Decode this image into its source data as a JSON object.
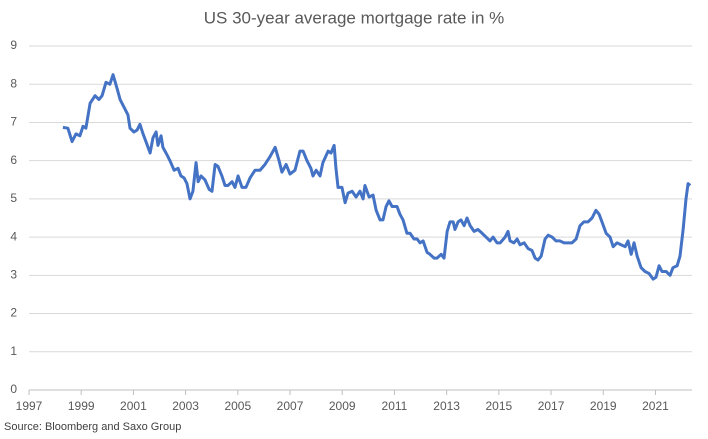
{
  "chart_data": {
    "type": "line",
    "title": "US 30-year average mortgage rate in %",
    "source": "Source: Bloomberg and Saxo Group",
    "x": [
      1998.3,
      1998.49,
      1998.65,
      1998.8,
      1998.95,
      1999.07,
      1999.18,
      1999.34,
      1999.53,
      1999.68,
      1999.8,
      1999.95,
      2000.1,
      2000.22,
      2000.37,
      2000.49,
      2000.64,
      2000.79,
      2000.87,
      2001.02,
      2001.14,
      2001.25,
      2001.37,
      2001.48,
      2001.64,
      2001.75,
      2001.87,
      2001.94,
      2002.06,
      2002.13,
      2002.29,
      2002.4,
      2002.56,
      2002.71,
      2002.82,
      2002.94,
      2003.05,
      2003.17,
      2003.28,
      2003.4,
      2003.48,
      2003.59,
      2003.74,
      2003.9,
      2004.01,
      2004.13,
      2004.24,
      2004.39,
      2004.51,
      2004.62,
      2004.78,
      2004.89,
      2005.01,
      2005.16,
      2005.31,
      2005.47,
      2005.66,
      2005.85,
      2006.04,
      2006.23,
      2006.43,
      2006.58,
      2006.69,
      2006.85,
      2007.0,
      2007.19,
      2007.38,
      2007.5,
      2007.65,
      2007.8,
      2007.88,
      2008.0,
      2008.15,
      2008.26,
      2008.46,
      2008.57,
      2008.69,
      2008.76,
      2008.84,
      2008.99,
      2009.11,
      2009.22,
      2009.38,
      2009.53,
      2009.68,
      2009.8,
      2009.87,
      2010.03,
      2010.18,
      2010.3,
      2010.45,
      2010.56,
      2010.68,
      2010.79,
      2010.91,
      2011.1,
      2011.21,
      2011.33,
      2011.48,
      2011.6,
      2011.75,
      2011.87,
      2011.98,
      2012.1,
      2012.25,
      2012.36,
      2012.52,
      2012.63,
      2012.79,
      2012.9,
      2013.02,
      2013.13,
      2013.25,
      2013.32,
      2013.44,
      2013.55,
      2013.67,
      2013.78,
      2013.9,
      2014.05,
      2014.2,
      2014.36,
      2014.51,
      2014.66,
      2014.78,
      2014.93,
      2015.05,
      2015.24,
      2015.35,
      2015.43,
      2015.58,
      2015.7,
      2015.81,
      2015.97,
      2016.12,
      2016.27,
      2016.39,
      2016.5,
      2016.62,
      2016.77,
      2016.89,
      2017.04,
      2017.19,
      2017.34,
      2017.5,
      2017.65,
      2017.8,
      2017.96,
      2018.11,
      2018.26,
      2018.42,
      2018.57,
      2018.72,
      2018.84,
      2018.95,
      2019.11,
      2019.26,
      2019.38,
      2019.53,
      2019.68,
      2019.84,
      2019.95,
      2020.07,
      2020.18,
      2020.3,
      2020.45,
      2020.6,
      2020.75,
      2020.91,
      2021.02,
      2021.14,
      2021.25,
      2021.41,
      2021.56,
      2021.67,
      2021.83,
      2021.94,
      2022.06,
      2022.17,
      2022.25,
      2022.33
    ],
    "values": [
      6.87,
      6.85,
      6.5,
      6.7,
      6.65,
      6.9,
      6.85,
      7.5,
      7.7,
      7.6,
      7.7,
      8.05,
      8.0,
      8.25,
      7.9,
      7.6,
      7.4,
      7.2,
      6.85,
      6.75,
      6.8,
      6.95,
      6.7,
      6.5,
      6.2,
      6.6,
      6.75,
      6.4,
      6.65,
      6.35,
      6.15,
      6.0,
      5.75,
      5.8,
      5.6,
      5.55,
      5.4,
      5.0,
      5.2,
      5.95,
      5.45,
      5.6,
      5.5,
      5.25,
      5.2,
      5.9,
      5.85,
      5.6,
      5.35,
      5.35,
      5.45,
      5.3,
      5.6,
      5.3,
      5.3,
      5.55,
      5.75,
      5.75,
      5.9,
      6.1,
      6.35,
      6.0,
      5.7,
      5.9,
      5.65,
      5.75,
      6.25,
      6.25,
      6.0,
      5.8,
      5.6,
      5.75,
      5.6,
      5.95,
      6.25,
      6.2,
      6.4,
      5.8,
      5.3,
      5.3,
      4.9,
      5.15,
      5.2,
      5.05,
      5.2,
      5.0,
      5.35,
      5.05,
      5.1,
      4.7,
      4.45,
      4.45,
      4.8,
      4.95,
      4.8,
      4.8,
      4.6,
      4.45,
      4.1,
      4.1,
      3.95,
      3.95,
      3.85,
      3.9,
      3.6,
      3.55,
      3.45,
      3.45,
      3.55,
      3.45,
      4.15,
      4.4,
      4.4,
      4.2,
      4.4,
      4.45,
      4.3,
      4.5,
      4.3,
      4.15,
      4.2,
      4.1,
      4.0,
      3.9,
      4.0,
      3.85,
      3.85,
      4.0,
      4.15,
      3.9,
      3.85,
      3.95,
      3.8,
      3.85,
      3.7,
      3.65,
      3.45,
      3.4,
      3.5,
      3.95,
      4.05,
      4.0,
      3.9,
      3.9,
      3.85,
      3.85,
      3.85,
      3.95,
      4.3,
      4.4,
      4.4,
      4.5,
      4.7,
      4.6,
      4.4,
      4.1,
      4.0,
      3.75,
      3.85,
      3.8,
      3.75,
      3.9,
      3.55,
      3.85,
      3.5,
      3.2,
      3.1,
      3.05,
      2.9,
      2.95,
      3.25,
      3.1,
      3.1,
      3.0,
      3.2,
      3.25,
      3.5,
      4.2,
      5.0,
      5.4,
      5.35
    ],
    "color": "#4472c4",
    "xlim": [
      1997,
      2022.4
    ],
    "xticks": [
      1997,
      1999,
      2001,
      2003,
      2005,
      2007,
      2009,
      2011,
      2013,
      2015,
      2017,
      2019,
      2021
    ],
    "ylim": [
      0,
      9
    ],
    "yticks": [
      0,
      1,
      2,
      3,
      4,
      5,
      6,
      7,
      8,
      9
    ],
    "grid": true
  }
}
